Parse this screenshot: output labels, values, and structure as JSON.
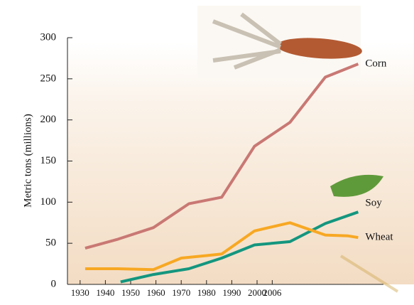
{
  "chart_data": {
    "type": "line",
    "y_label": "Metric tons (millions)",
    "xlim": [
      1925,
      2050
    ],
    "xticks": [
      1930,
      1940,
      1950,
      1960,
      1970,
      1980,
      1990,
      2000,
      2006
    ],
    "ylim": [
      0,
      300
    ],
    "yticks": [
      0,
      50,
      100,
      150,
      200,
      250,
      300
    ],
    "series": [
      {
        "name": "Corn",
        "color": "#c97874",
        "x": [
          1932,
          1945,
          1959,
          1973,
          1986,
          1999,
          2013,
          2027,
          2040
        ],
        "values": [
          44,
          55,
          69,
          98,
          106,
          168,
          197,
          252,
          268
        ]
      },
      {
        "name": "Soy",
        "color": "#14967f",
        "x": [
          1946,
          1959,
          1973,
          1986,
          1999,
          2013,
          2027,
          2040
        ],
        "values": [
          3,
          12,
          19,
          32,
          48,
          52,
          74,
          88
        ]
      },
      {
        "name": "Wheat",
        "color": "#f7a823",
        "x": [
          1932,
          1945,
          1959,
          1970,
          1980,
          1986,
          1999,
          2013,
          2027,
          2036,
          2040
        ],
        "values": [
          19,
          19,
          18,
          32,
          35,
          37,
          65,
          75,
          60,
          59,
          57
        ]
      }
    ]
  }
}
